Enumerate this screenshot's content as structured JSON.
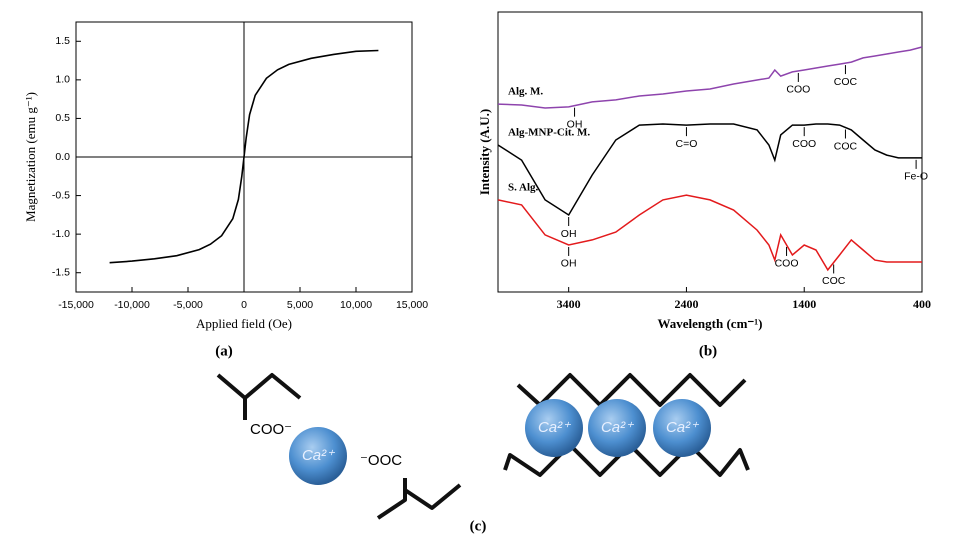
{
  "chart_data": [
    {
      "type": "line",
      "xlabel": "Applied field (Oe)",
      "ylabel": "Magnetization (emu g⁻¹)",
      "color": "#000000",
      "x": [
        -12000,
        -10000,
        -8000,
        -6000,
        -4000,
        -3000,
        -2000,
        -1000,
        -500,
        -200,
        0,
        200,
        500,
        1000,
        2000,
        3000,
        4000,
        6000,
        8000,
        10000,
        12000
      ],
      "values": [
        -1.37,
        -1.35,
        -1.32,
        -1.28,
        -1.2,
        -1.13,
        -1.02,
        -0.8,
        -0.55,
        -0.25,
        0,
        0.25,
        0.55,
        0.8,
        1.02,
        1.13,
        1.2,
        1.28,
        1.33,
        1.37,
        1.38
      ],
      "xlim": [
        -15000,
        15000
      ],
      "ylim": [
        -1.75,
        1.75
      ],
      "xticks": [
        {
          "value": -15000,
          "label": "-15,000"
        },
        {
          "value": -10000,
          "label": "-10,000"
        },
        {
          "value": -5000,
          "label": "-5,000"
        },
        0,
        {
          "value": 5000,
          "label": "5,000"
        },
        {
          "value": 10000,
          "label": "10,000"
        },
        {
          "value": 15000,
          "label": "15,000"
        }
      ],
      "yticks": [
        {
          "value": -1.5,
          "label": "-1.5"
        },
        {
          "value": -1,
          "label": "-1.0"
        },
        -0.5,
        {
          "value": 0,
          "label": "0.0"
        },
        0.5,
        {
          "value": 1,
          "label": "1.0"
        },
        1.5
      ]
    },
    {
      "type": "line",
      "xlabel": "Wavelength (cm⁻¹)",
      "ylabel": "Intensity (A.U.)",
      "x": [
        4000,
        3800,
        3600,
        3400,
        3200,
        3000,
        2800,
        2600,
        2400,
        2200,
        2000,
        1800,
        1700,
        1650,
        1600,
        1500,
        1400,
        1300,
        1200,
        1100,
        1000,
        900,
        800,
        700,
        600,
        500,
        400
      ],
      "xlim": [
        4000,
        400
      ],
      "ylim": [
        0,
        100
      ],
      "xticks": [
        3400,
        2400,
        1400,
        400
      ],
      "series": [
        {
          "name": "Alg. M.",
          "color": "#8e44ad",
          "values": [
            67.1,
            66.8,
            65.7,
            66.1,
            67.9,
            68.6,
            70,
            70.7,
            71.8,
            72.5,
            74.3,
            75.7,
            76.4,
            79.3,
            77.1,
            78.6,
            79.3,
            80,
            80.7,
            81.4,
            82.1,
            83.6,
            84.3,
            85,
            85.7,
            86.4,
            87.5
          ],
          "annotations": [
            {
              "label": "OH",
              "x": 3350
            },
            {
              "label": "COO",
              "x": 1450
            },
            {
              "label": "COC",
              "x": 1050
            }
          ]
        },
        {
          "name": "Alg-MNP-Cit. M.",
          "color": "#000000",
          "values": [
            52.5,
            47.1,
            32.9,
            27.5,
            41.8,
            54.3,
            59.6,
            60,
            59.6,
            60,
            60,
            57.9,
            52.5,
            47.1,
            56.1,
            59.6,
            59.6,
            60,
            60,
            59.6,
            57.9,
            54.3,
            50.7,
            48.9,
            47.9,
            47.9,
            47.9
          ],
          "annotations": [
            {
              "label": "OH",
              "x": 3400
            },
            {
              "label": "C=O",
              "x": 2400
            },
            {
              "label": "COO",
              "x": 1400
            },
            {
              "label": "COC",
              "x": 1050
            },
            {
              "label": "Fe-O",
              "x": 450
            }
          ]
        },
        {
          "name": "S. Alg.",
          "color": "#e31a1c",
          "values": [
            32.9,
            31.1,
            20.4,
            16.8,
            18.6,
            21.4,
            27.5,
            32.9,
            34.6,
            32.9,
            29.3,
            22.1,
            16.8,
            11.4,
            20.4,
            13.2,
            16.8,
            15,
            7.9,
            13.2,
            18.6,
            15,
            11.4,
            10.7,
            10.7,
            10.7,
            10.7
          ],
          "annotations": [
            {
              "label": "OH",
              "x": 3400
            },
            {
              "label": "COO",
              "x": 1550
            },
            {
              "label": "COC",
              "x": 1150
            }
          ]
        }
      ]
    }
  ],
  "panels": [
    "(a)",
    "(b)",
    "(c)"
  ],
  "diagram": {
    "left": {
      "carboxylate": "COO⁻",
      "ion": "Ca²⁺",
      "ester": "⁻OOC"
    },
    "right": {
      "ions": [
        "Ca²⁺",
        "Ca²⁺",
        "Ca²⁺"
      ]
    }
  }
}
